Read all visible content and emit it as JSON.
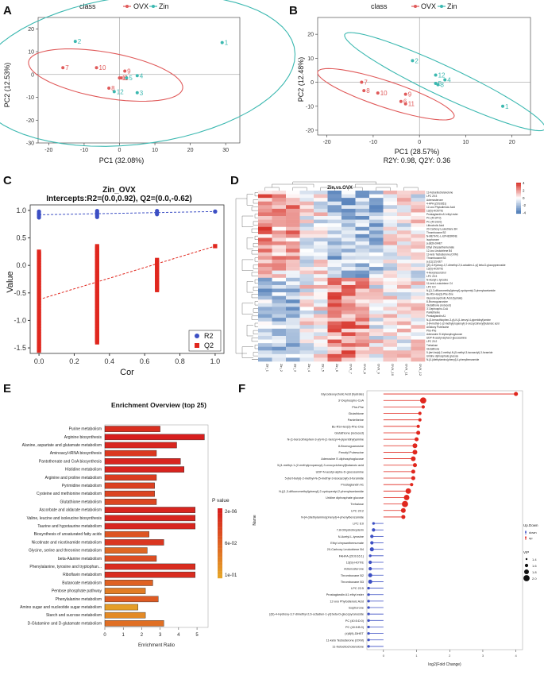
{
  "colors": {
    "ovx": "#e05a5a",
    "zin": "#3bb8b0",
    "red": "#e0271e",
    "blue": "#3c4fc4",
    "heat_hi": "#d73027",
    "heat_lo": "#4575b4"
  },
  "panel_a": {
    "letter": "A",
    "legend_title": "class",
    "legend_items": [
      "OVX",
      "Zin"
    ],
    "xlabel": "PC1 (32.08%)",
    "ylabel": "PC2 (12.53%)",
    "xticks": [
      "-20",
      "-10",
      "0",
      "10",
      "20",
      "30"
    ],
    "yticks": [
      "20",
      "10",
      "0",
      "-10",
      "-20",
      "-30"
    ]
  },
  "panel_b": {
    "letter": "B",
    "legend_title": "class",
    "legend_items": [
      "OVX",
      "Zin"
    ],
    "xlabel": "PC1 (28.57%)",
    "ylabel": "PC2 (12.48%)",
    "subtitle": "R2Y: 0.98, Q2Y: 0.36",
    "xticks": [
      "-20",
      "-10",
      "0",
      "10",
      "20"
    ],
    "yticks": [
      "20",
      "10",
      "0",
      "-10",
      "-20"
    ]
  },
  "panel_c": {
    "letter": "C",
    "title": "Zin_OVX",
    "subtitle": "Intercepts:R2=(0.0,0.92), Q2=(0.0,-0.62)",
    "xlabel": "Cor",
    "ylabel": "Value",
    "xticks": [
      "0.0",
      "0.2",
      "0.4",
      "0.6",
      "0.8",
      "1.0"
    ],
    "yticks": [
      "1.0",
      "0.5",
      "0.0",
      "-0.5",
      "-1.0",
      "-1.5"
    ],
    "legend": [
      "R2",
      "Q2"
    ]
  },
  "panel_d": {
    "letter": "D",
    "title": "Zin.vs.OVX",
    "scale_ticks": [
      "4",
      "2",
      "0",
      "-2",
      "-4"
    ],
    "columns": [
      "Zin_1",
      "Zin_2",
      "Zin_3",
      "Zin_4",
      "Zin_5",
      "Zin_6",
      "OVX_7",
      "OVX_8",
      "OVX_9",
      "OVX_10",
      "OVX_11",
      "OVX_12"
    ],
    "rows": [
      "11-Ketoetiocholanolone",
      "LPC 20:3",
      "Adrenosterone",
      "4-HPA (ZOS:B51)",
      "12-oxo Phytodienoic Acid",
      "13(S)-HODTrE",
      "Prostaglandin A1 ethyl ester",
      "PC (40:3P:0)",
      "PC (40:3:B:0)",
      "Lithocholic Acid",
      "20-Carboxy Leukotriene B4",
      "Thromboxane B2",
      "N-METHYL-L-EPHEDRINE",
      "Isophorone",
      "(±)8(9)-DiHET",
      "Ethyl chrysanthemumate",
      "12-oxo Leukotriene B4",
      "11-keto Testosterone (OXM)",
      "Thromboxane B3",
      "(±)11(12)-EET",
      "[(E)-4-Hydroxy-3,7-dimethyl-2,6-octadien-1-yl] beta-D-glucopyranoside",
      "13(S)-HODTrE",
      "4-Hexylresorcinol",
      "LPC 20:3",
      "N-Acetyl-L-tyrosine",
      "11-keto Leukotriene C4",
      "LPC 6:0",
      "N-[(1,3-difluoromethyl)phenyl]-cyclopentyl-3-phenylacetamide",
      "Bu-RS-Hex(3)-Phe-One",
      "Glycodeoxycholic Acid (hydrate)",
      "8-Bromoguanosine",
      "Glutathione (reduced)",
      "3'-Dephospho-CoA",
      "Pantetheine",
      "Prostaglandin A1",
      "N-(3-benzothiophen-3-yl)-N-(1-benzyl-4-piperidinyl)amine",
      "3-[4-methyl-1-(2-methylpropanoyl)-3-oxocyclohexyl]butanoic acid",
      "Amidoxy Putrescine",
      "Phe-Phe",
      "Adenosine 5'-diphosphoglucose",
      "UDP-N-acetyl-alpha-D-glucosamine",
      "LPC 20:2",
      "Trehalose",
      "Glutathione",
      "5-(tert-butyl)-2-methyl-N-(5-methyl-3-isoxazolyl)-3-furamide",
      "Uridine diphosphate glucose",
      "N-[4-(diethylamino)phenyl]-4-phenylbenzamide"
    ]
  },
  "chart_data": [
    {
      "panel": "A",
      "type": "scatter",
      "title": "",
      "xlabel": "PC1 (32.08%)",
      "ylabel": "PC2 (12.53%)",
      "xlim": [
        -23,
        34
      ],
      "ylim": [
        -30,
        25
      ],
      "series": [
        {
          "name": "OVX",
          "points": [
            {
              "label": "7",
              "x": -16,
              "y": 3
            },
            {
              "label": "10",
              "x": -6.5,
              "y": 3
            },
            {
              "label": "9",
              "x": 1.5,
              "y": 1.5
            },
            {
              "label": "11",
              "x": 0,
              "y": -1.5
            },
            {
              "label": "8",
              "x": -3,
              "y": -6
            },
            {
              "label": "6",
              "x": 0.5,
              "y": -1.5
            }
          ]
        },
        {
          "name": "Zin",
          "points": [
            {
              "label": "1",
              "x": 29,
              "y": 14
            },
            {
              "label": "2",
              "x": -12.5,
              "y": 14.5
            },
            {
              "label": "4",
              "x": 5,
              "y": -0.5
            },
            {
              "label": "5",
              "x": 2,
              "y": -1.5
            },
            {
              "label": "12",
              "x": -1.5,
              "y": -7.5
            },
            {
              "label": "3",
              "x": 5,
              "y": -8
            }
          ]
        }
      ]
    },
    {
      "panel": "B",
      "type": "scatter",
      "title": "",
      "xlabel": "PC1 (28.57%)",
      "ylabel": "PC2 (12.48%)",
      "xlim": [
        -22,
        24
      ],
      "ylim": [
        -22,
        27
      ],
      "series": [
        {
          "name": "OVX",
          "points": [
            {
              "label": "7",
              "x": -12.5,
              "y": 0
            },
            {
              "label": "10",
              "x": -9,
              "y": -4.5
            },
            {
              "label": "8",
              "x": -12,
              "y": -3.5
            },
            {
              "label": "9",
              "x": -3,
              "y": -5
            },
            {
              "label": "11",
              "x": -3,
              "y": -9
            },
            {
              "label": "6",
              "x": -4,
              "y": -8
            }
          ]
        },
        {
          "name": "Zin",
          "points": [
            {
              "label": "1",
              "x": 18,
              "y": -10
            },
            {
              "label": "2",
              "x": -1.5,
              "y": 9
            },
            {
              "label": "12",
              "x": 3.5,
              "y": 3
            },
            {
              "label": "4",
              "x": 5.5,
              "y": 1
            },
            {
              "label": "5",
              "x": 3.5,
              "y": -0.5
            },
            {
              "label": "3",
              "x": 4,
              "y": -1
            }
          ]
        }
      ]
    },
    {
      "panel": "C",
      "type": "scatter",
      "title": "Zin_OVX",
      "xlabel": "Cor",
      "ylabel": "Value",
      "xlim": [
        -0.05,
        1.05
      ],
      "ylim": [
        -1.6,
        1.1
      ],
      "series": [
        {
          "name": "R2",
          "x": [
            0.0,
            0.33,
            0.67,
            1.0
          ],
          "y_min": [
            0.87,
            0.88,
            0.93,
            0.98
          ],
          "y_max": [
            0.98,
            0.99,
            0.99,
            0.98
          ]
        },
        {
          "name": "Q2",
          "x": [
            0.0,
            0.33,
            0.67,
            1.0
          ],
          "y_min": [
            -1.55,
            -1.4,
            -0.45,
            0.35
          ],
          "y_max": [
            0.25,
            0.35,
            0.1,
            0.35
          ]
        }
      ],
      "regression": [
        {
          "name": "R2",
          "x": [
            0,
            1
          ],
          "y": [
            0.92,
            0.98
          ]
        },
        {
          "name": "Q2",
          "x": [
            0,
            1
          ],
          "y": [
            -0.62,
            0.35
          ]
        }
      ]
    },
    {
      "panel": "D",
      "type": "heatmap",
      "title": "Zin.vs.OVX",
      "columns": [
        "Zin_1",
        "Zin_2",
        "Zin_3",
        "Zin_4",
        "Zin_5",
        "Zin_6",
        "OVX_7",
        "OVX_8",
        "OVX_9",
        "OVX_10",
        "OVX_11",
        "OVX_12"
      ],
      "rows_count": 47,
      "scale": [
        -4,
        4
      ]
    },
    {
      "panel": "E",
      "type": "bar",
      "title": "Enrichment Overview (top 25)",
      "xlabel": "Enrichment Ratio",
      "xlim": [
        0,
        5.6
      ],
      "xticks": [
        "0",
        "1",
        "2",
        "3",
        "4",
        "5"
      ],
      "legend_title": "P value",
      "legend_ticks": [
        "2e-06",
        "6e-02",
        "1e-01"
      ],
      "categories": [
        "Purine metabolism",
        "Arginine biosynthesis",
        "Alanine, aspartate and glutamate metabolism",
        "Aminoacyl-tRNA biosynthesis",
        "Pantothenate and CoA biosynthesis",
        "Histidine metabolism",
        "Arginine and proline metabolism",
        "Pyrimidine metabolism",
        "Cysteine and methionine metabolism",
        "Glutathione metabolism",
        "Ascorbate and aldarate metabolism",
        "Valine, leucine and isoleucine biosynthesis",
        "Taurine and hypotaurine metabolism",
        "Biosynthesis of unsaturated fatty acids",
        "Nicotinate and nicotinamide metabolism",
        "Glycine, serine and threonine metabolism",
        "beta-Alanine metabolism",
        "Phenylalanine, tyrosine and tryptophan...",
        "Riboflavin metabolism",
        "Butanoate metabolism",
        "Pentose phosphate pathway",
        "Phenylalanine metabolism",
        "Amino sugar and nucleotide sugar metabolism",
        "Starch and sucrose metabolism",
        "D-Glutamine and D-glutamate metabolism"
      ],
      "values": [
        3.0,
        5.4,
        3.9,
        2.8,
        4.1,
        4.3,
        2.8,
        2.7,
        2.7,
        2.8,
        4.9,
        4.9,
        4.9,
        2.4,
        3.2,
        2.3,
        2.8,
        4.9,
        4.9,
        2.6,
        2.2,
        2.9,
        1.8,
        2.2,
        3.2
      ],
      "p_rank": [
        0.12,
        0.0,
        0.06,
        0.2,
        0.05,
        0.04,
        0.22,
        0.25,
        0.28,
        0.3,
        0.05,
        0.05,
        0.05,
        0.4,
        0.18,
        0.55,
        0.35,
        0.1,
        0.1,
        0.5,
        0.7,
        0.45,
        0.95,
        0.8,
        0.6
      ]
    },
    {
      "panel": "F",
      "type": "scatter",
      "title": "",
      "xlabel": "log2(Fold Change)",
      "ylabel": "Name",
      "xlim": [
        -0.5,
        4.2
      ],
      "xticks": [
        "0",
        "1",
        "2",
        "3",
        "4"
      ],
      "legend_updown_title": "Up.Down",
      "legend_updown": [
        "down",
        "up"
      ],
      "legend_vip_title": "VIP",
      "legend_vip": [
        "1.4",
        "1.6",
        "1.8",
        "2.0"
      ],
      "categories": [
        "Glycodeoxycholic Acid (hydrate)",
        "3'-Dephospho-CoA",
        "Phe-Phe",
        "Glutathione",
        "Pantetheine",
        "Bu-RS-Hex(3)-Phe-One",
        "Glutathione (reduced)",
        "N-(1-benzothiophen-3-yl)-N-(1-benzyl-4-piperidinyl)amine",
        "8-Bromoguanosine",
        "Fenofyl Putrescine",
        "Adenosine 5'-diphosphoglucose",
        "3-[4-methyl-1-(2-methylpropanoyl)-3-oxocyclohexyl]butanoic acid",
        "UDP-N-acetyl-alpha-D-glucosamine",
        "5-(tert-butyl)-2-methyl-N-(5-methyl-3-isoxazolyl)-3-furamide",
        "Prostaglandin A1",
        "N-[(1,3-difluoromethyl)phenyl]-2-cyclopentyl-2-phenylacetamide",
        "Uridine diphosphate glucose",
        "Trehalose",
        "LPC 20:2",
        "N-[4-(diethylamino)phenyl]-4-phenylbenzamide",
        "LPC 6:0",
        "7,8-Dihydrobiopterin",
        "N-Acetyl-L-tyrosine",
        "Ethyl chrysanthemumate",
        "20-Carboxy Leukotriene B4",
        "FAHFA (20:0/16:1)",
        "13(S)-HOTrE",
        "Adrenosterone",
        "Thromboxane B2",
        "Thromboxane B3",
        "LPC 22:5",
        "Prostaglandin A1 ethyl ester",
        "12-oxo Phytodienoic Acid",
        "Isophorone",
        "[(E)-4-Hydroxy-3,7-dimethyl-2,6-octadien-1-yl] beta-D-glucopyranoside",
        "PC (40:5:D:0)",
        "PC (40:5:B:0)",
        "(±)8(9)-DiHET",
        "11-keto Testosterone (OXM)",
        "11-Ketoetiocholanolone"
      ],
      "values": [
        4.0,
        1.2,
        1.2,
        1.1,
        1.1,
        1.05,
        1.05,
        1.0,
        0.95,
        0.95,
        0.9,
        0.95,
        0.9,
        0.9,
        0.85,
        0.75,
        0.7,
        0.65,
        0.6,
        0.6,
        -0.3,
        -0.3,
        -0.35,
        -0.35,
        -0.35,
        -0.4,
        -0.4,
        -0.4,
        -0.4,
        -0.4,
        -0.45,
        -0.45,
        -0.45,
        -0.45,
        -0.45,
        -0.45,
        -0.45,
        -0.45,
        -0.45,
        -0.45
      ],
      "direction": [
        "up",
        "up",
        "up",
        "up",
        "up",
        "up",
        "up",
        "up",
        "up",
        "up",
        "up",
        "up",
        "up",
        "up",
        "up",
        "up",
        "up",
        "up",
        "up",
        "up",
        "down",
        "down",
        "down",
        "down",
        "down",
        "down",
        "down",
        "down",
        "down",
        "down",
        "down",
        "down",
        "down",
        "down",
        "down",
        "down",
        "down",
        "down",
        "down",
        "down"
      ],
      "vip": [
        1.7,
        2.0,
        1.6,
        1.6,
        1.6,
        1.6,
        1.7,
        1.7,
        1.8,
        1.8,
        1.8,
        1.7,
        1.7,
        1.7,
        1.6,
        1.9,
        1.9,
        2.0,
        1.8,
        1.7,
        1.5,
        1.6,
        1.6,
        1.6,
        1.7,
        1.5,
        1.6,
        1.6,
        1.7,
        1.7,
        1.5,
        1.5,
        1.5,
        1.5,
        1.5,
        1.5,
        1.5,
        1.5,
        1.5,
        1.5
      ]
    }
  ]
}
